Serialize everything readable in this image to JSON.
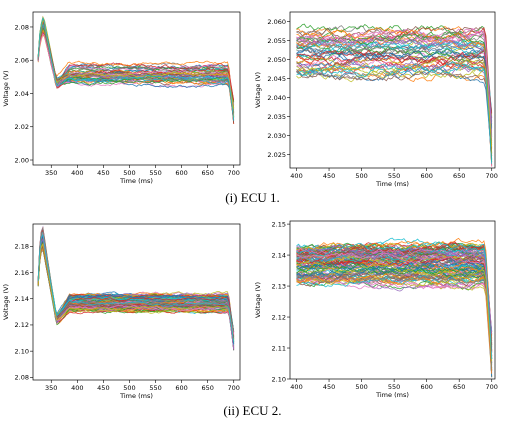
{
  "palette": [
    "#1f77b4",
    "#ff7f0e",
    "#2ca02c",
    "#d62728",
    "#9467bd",
    "#8c564b",
    "#e377c2",
    "#7f7f7f",
    "#bcbd22",
    "#17becf"
  ],
  "captions": {
    "top": "(i) ECU 1.",
    "bottom": "(ii) ECU 2."
  },
  "chart_data": [
    {
      "id": "ecu1-full",
      "type": "line",
      "xlabel": "Time (ms)",
      "ylabel": "Voltage (V)",
      "xlim": [
        315,
        712
      ],
      "ylim": [
        1.997,
        2.089
      ],
      "xticks": [
        350,
        400,
        450,
        500,
        550,
        600,
        650,
        700
      ],
      "yticks": [
        2.0,
        2.02,
        2.04,
        2.06,
        2.08
      ],
      "ytick_decimals": 2,
      "grid": false,
      "series_count": 50,
      "profile": {
        "start_x": 325,
        "end_x": 700,
        "peak_x": 335,
        "peak": 2.082,
        "dip_x": 360,
        "dip": 2.046,
        "plateau": 2.052,
        "spread": 0.006,
        "end_drop": 2.026
      }
    },
    {
      "id": "ecu1-zoom",
      "type": "line",
      "xlabel": "Time (ms)",
      "ylabel": "Voltage (V)",
      "xlim": [
        390,
        705
      ],
      "ylim": [
        2.0215,
        2.0625
      ],
      "xticks": [
        400,
        450,
        500,
        550,
        600,
        650,
        700
      ],
      "yticks": [
        2.025,
        2.03,
        2.035,
        2.04,
        2.045,
        2.05,
        2.055,
        2.06
      ],
      "ytick_decimals": 3,
      "grid": false,
      "series_count": 50,
      "profile": {
        "start_x": 400,
        "end_x": 700,
        "plateau": 2.052,
        "spread": 0.006,
        "end_drop": 2.026
      }
    },
    {
      "id": "ecu2-full",
      "type": "line",
      "xlabel": "Time (ms)",
      "ylabel": "Voltage (V)",
      "xlim": [
        315,
        712
      ],
      "ylim": [
        2.078,
        2.197
      ],
      "xticks": [
        350,
        400,
        450,
        500,
        550,
        600,
        650,
        700
      ],
      "yticks": [
        2.08,
        2.1,
        2.12,
        2.14,
        2.16,
        2.18
      ],
      "ytick_decimals": 2,
      "grid": false,
      "series_count": 110,
      "profile": {
        "start_x": 325,
        "end_x": 700,
        "peak_x": 333,
        "peak": 2.188,
        "dip_x": 360,
        "dip": 2.124,
        "plateau": 2.137,
        "spread": 0.006,
        "end_drop": 2.105
      }
    },
    {
      "id": "ecu2-zoom",
      "type": "line",
      "xlabel": "Time (ms)",
      "ylabel": "Voltage (V)",
      "xlim": [
        390,
        705
      ],
      "ylim": [
        2.1,
        2.151
      ],
      "xticks": [
        400,
        450,
        500,
        550,
        600,
        650,
        700
      ],
      "yticks": [
        2.1,
        2.11,
        2.12,
        2.13,
        2.14,
        2.15
      ],
      "ytick_decimals": 2,
      "grid": false,
      "series_count": 110,
      "profile": {
        "start_x": 400,
        "end_x": 700,
        "plateau": 2.137,
        "spread": 0.006,
        "end_drop": 2.105
      }
    }
  ]
}
